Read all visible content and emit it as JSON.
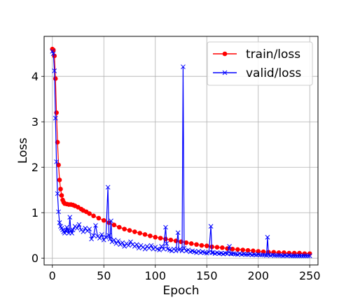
{
  "chart_data": {
    "type": "line",
    "xlabel": "Epoch",
    "ylabel": "Loss",
    "xlim": [
      -8,
      258
    ],
    "ylim": [
      -0.15,
      4.88
    ],
    "xticks": [
      0,
      50,
      100,
      150,
      200,
      250
    ],
    "yticks": [
      0,
      1,
      2,
      3,
      4
    ],
    "grid": true,
    "legend_position": "top-right",
    "series": [
      {
        "name": "train/loss",
        "color": "#ff0000",
        "marker": "circle",
        "points": [
          [
            0,
            4.6
          ],
          [
            1,
            4.58
          ],
          [
            2,
            4.45
          ],
          [
            3,
            3.95
          ],
          [
            4,
            3.2
          ],
          [
            5,
            2.55
          ],
          [
            6,
            2.05
          ],
          [
            7,
            1.72
          ],
          [
            8,
            1.52
          ],
          [
            9,
            1.38
          ],
          [
            10,
            1.28
          ],
          [
            11,
            1.23
          ],
          [
            12,
            1.2
          ],
          [
            14,
            1.19
          ],
          [
            16,
            1.18
          ],
          [
            18,
            1.18
          ],
          [
            20,
            1.17
          ],
          [
            22,
            1.15
          ],
          [
            25,
            1.12
          ],
          [
            28,
            1.08
          ],
          [
            30,
            1.05
          ],
          [
            33,
            1.02
          ],
          [
            36,
            0.98
          ],
          [
            40,
            0.93
          ],
          [
            45,
            0.88
          ],
          [
            50,
            0.83
          ],
          [
            55,
            0.78
          ],
          [
            60,
            0.73
          ],
          [
            65,
            0.68
          ],
          [
            70,
            0.64
          ],
          [
            75,
            0.61
          ],
          [
            80,
            0.58
          ],
          [
            85,
            0.55
          ],
          [
            90,
            0.52
          ],
          [
            95,
            0.49
          ],
          [
            100,
            0.46
          ],
          [
            105,
            0.44
          ],
          [
            110,
            0.42
          ],
          [
            115,
            0.4
          ],
          [
            120,
            0.38
          ],
          [
            125,
            0.36
          ],
          [
            130,
            0.34
          ],
          [
            135,
            0.32
          ],
          [
            140,
            0.3
          ],
          [
            145,
            0.28
          ],
          [
            150,
            0.27
          ],
          [
            155,
            0.25
          ],
          [
            160,
            0.24
          ],
          [
            165,
            0.23
          ],
          [
            170,
            0.21
          ],
          [
            175,
            0.2
          ],
          [
            180,
            0.19
          ],
          [
            185,
            0.18
          ],
          [
            190,
            0.17
          ],
          [
            195,
            0.16
          ],
          [
            200,
            0.15
          ],
          [
            205,
            0.14
          ],
          [
            210,
            0.13
          ],
          [
            215,
            0.13
          ],
          [
            220,
            0.12
          ],
          [
            225,
            0.12
          ],
          [
            230,
            0.11
          ],
          [
            235,
            0.11
          ],
          [
            240,
            0.11
          ],
          [
            245,
            0.1
          ],
          [
            250,
            0.1
          ]
        ]
      },
      {
        "name": "valid/loss",
        "color": "#0000ff",
        "marker": "x",
        "points": [
          [
            0,
            4.55
          ],
          [
            1,
            4.5
          ],
          [
            2,
            4.12
          ],
          [
            3,
            3.08
          ],
          [
            4,
            2.12
          ],
          [
            5,
            1.42
          ],
          [
            6,
            1.02
          ],
          [
            7,
            0.78
          ],
          [
            8,
            0.7
          ],
          [
            9,
            0.66
          ],
          [
            10,
            0.62
          ],
          [
            11,
            0.58
          ],
          [
            12,
            0.55
          ],
          [
            13,
            0.6
          ],
          [
            14,
            0.68
          ],
          [
            15,
            0.62
          ],
          [
            16,
            0.55
          ],
          [
            17,
            0.9
          ],
          [
            18,
            0.6
          ],
          [
            19,
            0.55
          ],
          [
            20,
            0.62
          ],
          [
            22,
            0.7
          ],
          [
            24,
            0.66
          ],
          [
            26,
            0.74
          ],
          [
            28,
            0.62
          ],
          [
            30,
            0.58
          ],
          [
            32,
            0.66
          ],
          [
            34,
            0.6
          ],
          [
            36,
            0.64
          ],
          [
            38,
            0.42
          ],
          [
            40,
            0.5
          ],
          [
            42,
            0.72
          ],
          [
            44,
            0.48
          ],
          [
            46,
            0.44
          ],
          [
            48,
            0.52
          ],
          [
            50,
            0.4
          ],
          [
            52,
            0.46
          ],
          [
            54,
            1.56
          ],
          [
            55,
            0.5
          ],
          [
            56,
            0.42
          ],
          [
            57,
            0.82
          ],
          [
            58,
            0.36
          ],
          [
            60,
            0.4
          ],
          [
            62,
            0.32
          ],
          [
            64,
            0.38
          ],
          [
            66,
            0.3
          ],
          [
            68,
            0.34
          ],
          [
            70,
            0.26
          ],
          [
            72,
            0.32
          ],
          [
            74,
            0.28
          ],
          [
            76,
            0.36
          ],
          [
            78,
            0.3
          ],
          [
            80,
            0.26
          ],
          [
            82,
            0.3
          ],
          [
            84,
            0.22
          ],
          [
            86,
            0.28
          ],
          [
            88,
            0.24
          ],
          [
            90,
            0.2
          ],
          [
            92,
            0.26
          ],
          [
            94,
            0.22
          ],
          [
            96,
            0.28
          ],
          [
            98,
            0.2
          ],
          [
            100,
            0.24
          ],
          [
            102,
            0.2
          ],
          [
            104,
            0.18
          ],
          [
            106,
            0.26
          ],
          [
            108,
            0.2
          ],
          [
            110,
            0.68
          ],
          [
            111,
            0.32
          ],
          [
            112,
            0.2
          ],
          [
            114,
            0.18
          ],
          [
            116,
            0.16
          ],
          [
            118,
            0.2
          ],
          [
            120,
            0.16
          ],
          [
            122,
            0.56
          ],
          [
            123,
            0.18
          ],
          [
            124,
            0.2
          ],
          [
            126,
            0.16
          ],
          [
            127,
            4.21
          ],
          [
            128,
            0.22
          ],
          [
            130,
            0.16
          ],
          [
            132,
            0.18
          ],
          [
            134,
            0.14
          ],
          [
            136,
            0.16
          ],
          [
            138,
            0.14
          ],
          [
            140,
            0.12
          ],
          [
            142,
            0.15
          ],
          [
            144,
            0.12
          ],
          [
            146,
            0.14
          ],
          [
            148,
            0.12
          ],
          [
            150,
            0.11
          ],
          [
            152,
            0.13
          ],
          [
            154,
            0.7
          ],
          [
            155,
            0.12
          ],
          [
            156,
            0.12
          ],
          [
            158,
            0.1
          ],
          [
            160,
            0.12
          ],
          [
            162,
            0.1
          ],
          [
            164,
            0.11
          ],
          [
            166,
            0.09
          ],
          [
            168,
            0.11
          ],
          [
            170,
            0.1
          ],
          [
            172,
            0.26
          ],
          [
            173,
            0.1
          ],
          [
            174,
            0.09
          ],
          [
            176,
            0.1
          ],
          [
            178,
            0.09
          ],
          [
            180,
            0.08
          ],
          [
            182,
            0.1
          ],
          [
            184,
            0.08
          ],
          [
            186,
            0.09
          ],
          [
            188,
            0.08
          ],
          [
            190,
            0.08
          ],
          [
            192,
            0.09
          ],
          [
            194,
            0.07
          ],
          [
            196,
            0.08
          ],
          [
            198,
            0.07
          ],
          [
            200,
            0.08
          ],
          [
            202,
            0.07
          ],
          [
            204,
            0.07
          ],
          [
            206,
            0.07
          ],
          [
            208,
            0.06
          ],
          [
            209,
            0.46
          ],
          [
            210,
            0.07
          ],
          [
            212,
            0.06
          ],
          [
            214,
            0.07
          ],
          [
            216,
            0.06
          ],
          [
            218,
            0.06
          ],
          [
            220,
            0.06
          ],
          [
            222,
            0.06
          ],
          [
            224,
            0.05
          ],
          [
            226,
            0.06
          ],
          [
            228,
            0.05
          ],
          [
            230,
            0.06
          ],
          [
            232,
            0.05
          ],
          [
            234,
            0.05
          ],
          [
            236,
            0.05
          ],
          [
            238,
            0.05
          ],
          [
            240,
            0.05
          ],
          [
            242,
            0.05
          ],
          [
            244,
            0.05
          ],
          [
            246,
            0.05
          ],
          [
            248,
            0.05
          ],
          [
            250,
            0.05
          ]
        ]
      }
    ]
  }
}
